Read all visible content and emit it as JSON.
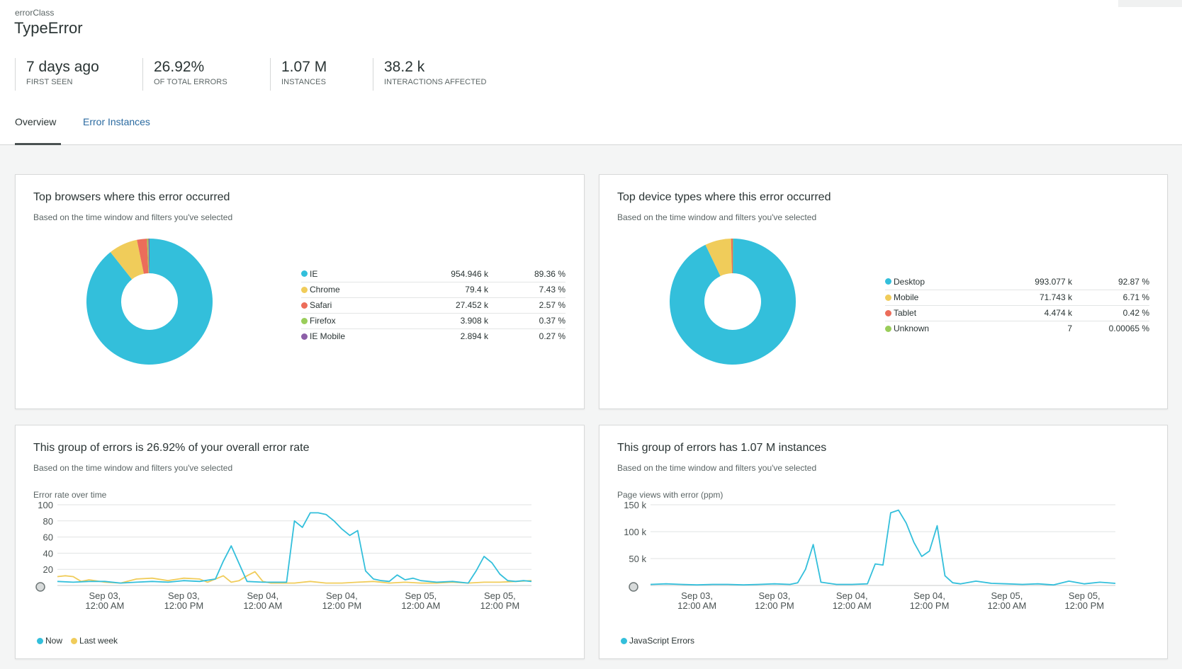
{
  "header": {
    "eyebrow": "errorClass",
    "title": "TypeError"
  },
  "stats": [
    {
      "value": "7 days ago",
      "label": "FIRST SEEN"
    },
    {
      "value": "26.92%",
      "label": "OF TOTAL ERRORS"
    },
    {
      "value": "1.07 M",
      "label": "INSTANCES"
    },
    {
      "value": "38.2 k",
      "label": "INTERACTIONS AFFECTED"
    }
  ],
  "tabs": {
    "overview": "Overview",
    "instances": "Error Instances"
  },
  "colors": {
    "blue": "#33bfdb",
    "yellow": "#f0cc5a",
    "red": "#ec6d5a",
    "green": "#9acd5a",
    "purple": "#8d5fa8"
  },
  "browsers": {
    "title": "Top browsers where this error occurred",
    "subtitle": "Based on the time window and filters you've selected",
    "rows": [
      {
        "name": "IE",
        "count": "954.946 k",
        "pct": "89.36 %",
        "value": 89.36,
        "color": "#33bfdb"
      },
      {
        "name": "Chrome",
        "count": "79.4 k",
        "pct": "7.43 %",
        "value": 7.43,
        "color": "#f0cc5a"
      },
      {
        "name": "Safari",
        "count": "27.452 k",
        "pct": "2.57 %",
        "value": 2.57,
        "color": "#ec6d5a"
      },
      {
        "name": "Firefox",
        "count": "3.908 k",
        "pct": "0.37 %",
        "value": 0.37,
        "color": "#9acd5a"
      },
      {
        "name": "IE Mobile",
        "count": "2.894 k",
        "pct": "0.27 %",
        "value": 0.27,
        "color": "#8d5fa8"
      }
    ]
  },
  "devices": {
    "title": "Top device types where this error occurred",
    "subtitle": "Based on the time window and filters you've selected",
    "rows": [
      {
        "name": "Desktop",
        "count": "993.077 k",
        "pct": "92.87 %",
        "value": 92.87,
        "color": "#33bfdb"
      },
      {
        "name": "Mobile",
        "count": "71.743 k",
        "pct": "6.71 %",
        "value": 6.71,
        "color": "#f0cc5a"
      },
      {
        "name": "Tablet",
        "count": "4.474 k",
        "pct": "0.42 %",
        "value": 0.42,
        "color": "#ec6d5a"
      },
      {
        "name": "Unknown",
        "count": "7",
        "pct": "0.00065 %",
        "value": 0.00065,
        "color": "#9acd5a"
      }
    ]
  },
  "error_rate": {
    "title": "This group of errors is 26.92% of your overall error rate",
    "subtitle": "Based on the time window and filters you've selected",
    "axis_caption": "Error rate over time",
    "legend": [
      {
        "name": "Now",
        "color": "#33bfdb"
      },
      {
        "name": "Last week",
        "color": "#f0cc5a"
      }
    ]
  },
  "instances": {
    "title": "This group of errors has 1.07 M instances",
    "subtitle": "Based on the time window and filters you've selected",
    "axis_caption": "Page views with error (ppm)",
    "legend": [
      {
        "name": "JavaScript Errors",
        "color": "#33bfdb"
      }
    ]
  },
  "chart_data": [
    {
      "type": "pie",
      "title": "Top browsers where this error occurred",
      "categories": [
        "IE",
        "Chrome",
        "Safari",
        "Firefox",
        "IE Mobile"
      ],
      "values": [
        89.36,
        7.43,
        2.57,
        0.37,
        0.27
      ]
    },
    {
      "type": "pie",
      "title": "Top device types where this error occurred",
      "categories": [
        "Desktop",
        "Mobile",
        "Tablet",
        "Unknown"
      ],
      "values": [
        92.87,
        6.71,
        0.42,
        0.00065
      ]
    },
    {
      "type": "line",
      "title": "Error rate over time",
      "ylabel": "",
      "ylim": [
        0,
        100
      ],
      "yticks": [
        20,
        40,
        60,
        80,
        100
      ],
      "xlim": [
        0,
        60
      ],
      "xticks": [
        {
          "x": 6,
          "line1": "Sep 03,",
          "line2": "12:00 AM"
        },
        {
          "x": 16,
          "line1": "Sep 03,",
          "line2": "12:00 PM"
        },
        {
          "x": 26,
          "line1": "Sep 04,",
          "line2": "12:00 AM"
        },
        {
          "x": 36,
          "line1": "Sep 04,",
          "line2": "12:00 PM"
        },
        {
          "x": 46,
          "line1": "Sep 05,",
          "line2": "12:00 AM"
        },
        {
          "x": 56,
          "line1": "Sep 05,",
          "line2": "12:00 PM"
        }
      ],
      "series": [
        {
          "name": "Now",
          "color": "#33bfdb",
          "x": [
            0,
            2,
            4,
            6,
            8,
            10,
            12,
            14,
            16,
            18,
            20,
            21,
            22,
            24,
            26,
            28,
            29,
            30,
            31,
            32,
            33,
            34,
            35,
            36,
            37,
            38,
            39,
            40,
            41,
            42,
            43,
            44,
            45,
            46,
            48,
            50,
            52,
            53,
            54,
            55,
            56,
            57,
            58,
            59,
            60
          ],
          "y": [
            5,
            4,
            5,
            5,
            3,
            4,
            5,
            4,
            6,
            5,
            8,
            30,
            49,
            5,
            4,
            4,
            4,
            80,
            72,
            90,
            90,
            88,
            80,
            70,
            62,
            68,
            18,
            8,
            6,
            5,
            13,
            7,
            9,
            6,
            4,
            5,
            3,
            18,
            36,
            28,
            14,
            6,
            5,
            6,
            5
          ]
        },
        {
          "name": "Last week",
          "color": "#f0cc5a",
          "x": [
            0,
            1,
            2,
            3,
            4,
            6,
            8,
            10,
            12,
            14,
            16,
            18,
            19,
            20,
            21,
            22,
            23,
            24,
            25,
            26,
            27,
            28,
            30,
            32,
            34,
            36,
            38,
            40,
            42,
            44,
            46,
            48,
            50,
            52,
            54,
            56,
            58,
            60
          ],
          "y": [
            11,
            12,
            11,
            5,
            7,
            4,
            3,
            8,
            9,
            6,
            9,
            8,
            4,
            8,
            12,
            4,
            6,
            12,
            17,
            5,
            3,
            3,
            3,
            5,
            3,
            3,
            4,
            5,
            3,
            4,
            3,
            3,
            4,
            3,
            4,
            4,
            5,
            6
          ]
        }
      ]
    },
    {
      "type": "line",
      "title": "Page views with error (ppm)",
      "ylabel": "",
      "ylim": [
        0,
        150000
      ],
      "yticks": [
        50000,
        100000,
        150000
      ],
      "ytick_labels": [
        "50 k",
        "100 k",
        "150 k"
      ],
      "xlim": [
        0,
        60
      ],
      "xticks": [
        {
          "x": 6,
          "line1": "Sep 03,",
          "line2": "12:00 AM"
        },
        {
          "x": 16,
          "line1": "Sep 03,",
          "line2": "12:00 PM"
        },
        {
          "x": 26,
          "line1": "Sep 04,",
          "line2": "12:00 AM"
        },
        {
          "x": 36,
          "line1": "Sep 04,",
          "line2": "12:00 PM"
        },
        {
          "x": 46,
          "line1": "Sep 05,",
          "line2": "12:00 AM"
        },
        {
          "x": 56,
          "line1": "Sep 05,",
          "line2": "12:00 PM"
        }
      ],
      "series": [
        {
          "name": "JavaScript Errors",
          "color": "#33bfdb",
          "x": [
            0,
            2,
            4,
            6,
            8,
            10,
            12,
            14,
            16,
            18,
            19,
            20,
            21,
            22,
            24,
            26,
            28,
            29,
            30,
            31,
            32,
            33,
            34,
            35,
            36,
            37,
            38,
            39,
            40,
            42,
            44,
            46,
            48,
            50,
            52,
            54,
            56,
            58,
            60
          ],
          "y": [
            2000,
            3000,
            2000,
            1000,
            2000,
            2000,
            1000,
            2000,
            3000,
            2000,
            5000,
            30000,
            76000,
            6000,
            2000,
            2000,
            3000,
            40000,
            38000,
            135000,
            140000,
            116000,
            80000,
            54000,
            64000,
            111000,
            18000,
            5000,
            3000,
            8000,
            4000,
            3000,
            2000,
            3000,
            1000,
            8000,
            3000,
            6000,
            4000
          ]
        }
      ]
    }
  ]
}
